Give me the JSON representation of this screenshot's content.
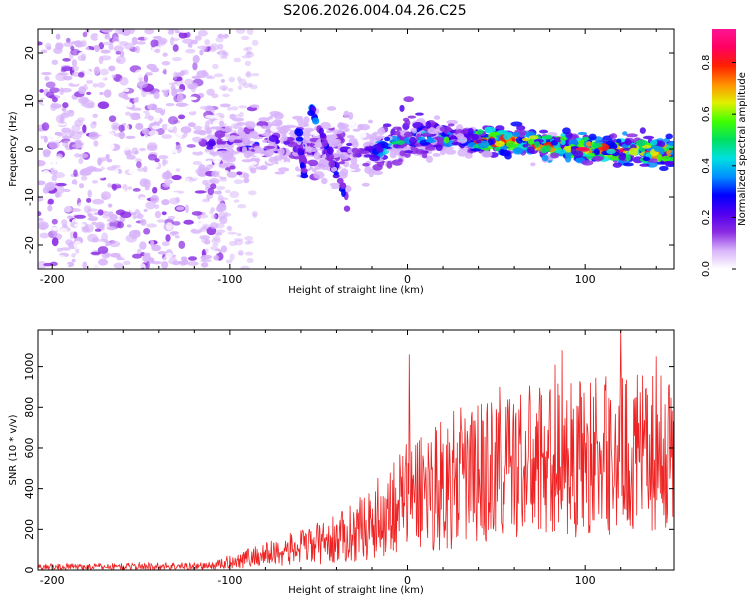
{
  "title": "S206.2026.004.04.26.C25",
  "chart_data": [
    {
      "type": "heatmap",
      "name": "spectrogram",
      "xlabel": "Height of straight line (km)",
      "ylabel": "Frequency (Hz)",
      "xlim": [
        -208,
        150
      ],
      "ylim": [
        -25,
        25
      ],
      "xticks": [
        -200,
        -100,
        0,
        100
      ],
      "yticks": [
        -20,
        -10,
        0,
        10,
        20
      ],
      "colorbar": {
        "label": "Normalized spectral amplitude",
        "range": [
          0,
          0.93
        ],
        "ticks": [
          0.0,
          0.2,
          0.4,
          0.6,
          0.8
        ],
        "colors": [
          "#ffffff",
          "#d8b4fa",
          "#8a2be2",
          "#5000f0",
          "#0000ff",
          "#0090ff",
          "#00e0e0",
          "#00e060",
          "#40ff00",
          "#e0f000",
          "#ff9000",
          "#ff2000",
          "#ff0060",
          "#ff1493"
        ]
      },
      "band": {
        "noise_region": [
          -208,
          -115
        ],
        "centre_frequency": [
          {
            "x": -110,
            "f": 0.5
          },
          {
            "x": -60,
            "f": 1.0
          },
          {
            "x": -20,
            "f": -1.0
          },
          {
            "x": 0,
            "f": 2.5
          },
          {
            "x": 50,
            "f": 1.8
          },
          {
            "x": 100,
            "f": 0.2
          },
          {
            "x": 150,
            "f": -0.8
          }
        ],
        "sloped_streaks": [
          {
            "x_start": -55,
            "f_start": 9,
            "x_end": -33,
            "f_end": -12
          },
          {
            "x_start": -62,
            "f_start": 4,
            "x_end": -58,
            "f_end": -5
          }
        ]
      }
    },
    {
      "type": "line",
      "name": "snr",
      "xlabel": "Height of straight line (km)",
      "ylabel": "SNR (10 * v/v)",
      "xlim": [
        -208,
        150
      ],
      "ylim": [
        0,
        1180
      ],
      "xticks": [
        -200,
        -100,
        0,
        100
      ],
      "yticks": [
        0,
        200,
        400,
        600,
        800,
        1000
      ],
      "color": "#ee2222",
      "envelope": [
        {
          "x": -208,
          "mean": 15,
          "spread": 15
        },
        {
          "x": -110,
          "mean": 20,
          "spread": 20
        },
        {
          "x": -90,
          "mean": 60,
          "spread": 50
        },
        {
          "x": -60,
          "mean": 110,
          "spread": 90
        },
        {
          "x": -40,
          "mean": 150,
          "spread": 120
        },
        {
          "x": -20,
          "mean": 230,
          "spread": 180
        },
        {
          "x": 0,
          "mean": 380,
          "spread": 300
        },
        {
          "x": 30,
          "mean": 450,
          "spread": 350
        },
        {
          "x": 60,
          "mean": 520,
          "spread": 380
        },
        {
          "x": 100,
          "mean": 560,
          "spread": 400
        },
        {
          "x": 150,
          "mean": 580,
          "spread": 380
        }
      ],
      "peaks": [
        {
          "x": 1,
          "y": 1060
        },
        {
          "x": 87,
          "y": 1080
        },
        {
          "x": 120,
          "y": 1180
        },
        {
          "x": 83,
          "y": 1010
        },
        {
          "x": 52,
          "y": 900
        },
        {
          "x": 140,
          "y": 1050
        }
      ]
    }
  ]
}
